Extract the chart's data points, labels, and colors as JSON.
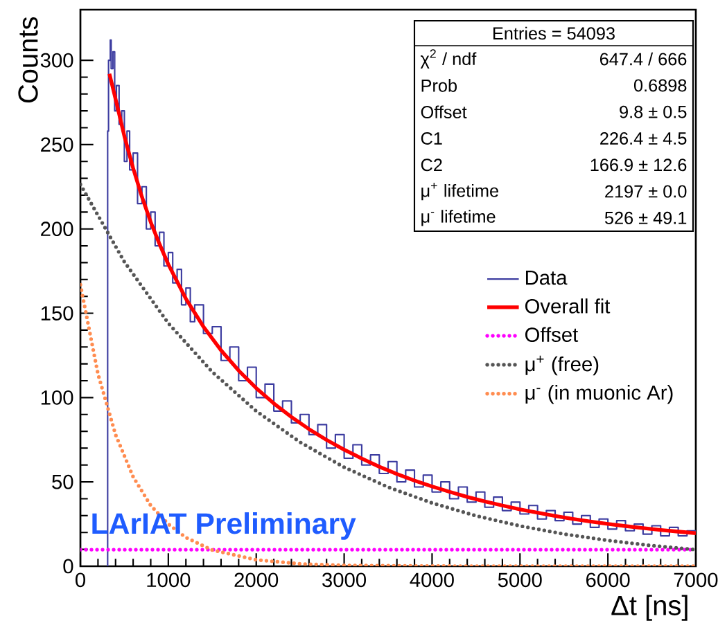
{
  "chart_data": {
    "type": "line",
    "ylabel": "Counts",
    "xlabel": "Δt [ns]",
    "xlim": [
      0,
      7000
    ],
    "ylim": [
      0,
      330
    ],
    "xticks": [
      0,
      1000,
      2000,
      3000,
      4000,
      5000,
      6000,
      7000
    ],
    "yticks": [
      0,
      50,
      100,
      150,
      200,
      250,
      300
    ],
    "legend": "right",
    "marker": "none",
    "grid": false,
    "series": [
      {
        "name": "Data",
        "type": "step",
        "color": "#3c3ca0",
        "line_style": "solid",
        "x": [
          300,
          310,
          320,
          340,
          350,
          370,
          390,
          410,
          440,
          470,
          500,
          530,
          560,
          600,
          650,
          700,
          750,
          800,
          850,
          900,
          950,
          1000,
          1050,
          1100,
          1150,
          1200,
          1250,
          1300,
          1400,
          1500,
          1600,
          1700,
          1800,
          1900,
          2000,
          2100,
          2200,
          2300,
          2400,
          2500,
          2600,
          2700,
          2800,
          2900,
          3000,
          3100,
          3200,
          3300,
          3400,
          3500,
          3600,
          3700,
          3800,
          3900,
          4000,
          4100,
          4200,
          4300,
          4400,
          4500,
          4600,
          4700,
          4800,
          4900,
          5000,
          5100,
          5200,
          5300,
          5400,
          5500,
          5600,
          5700,
          5800,
          5900,
          6000,
          6100,
          6200,
          6300,
          6400,
          6500,
          6600,
          6700,
          6800,
          6900,
          7000
        ],
        "values": [
          0,
          258,
          300,
          312,
          295,
          305,
          270,
          285,
          262,
          270,
          240,
          258,
          235,
          245,
          215,
          225,
          200,
          210,
          190,
          198,
          178,
          186,
          168,
          176,
          155,
          165,
          145,
          155,
          138,
          142,
          122,
          130,
          110,
          118,
          100,
          108,
          92,
          98,
          85,
          90,
          78,
          84,
          70,
          78,
          64,
          72,
          60,
          66,
          55,
          62,
          50,
          57,
          47,
          54,
          44,
          50,
          40,
          47,
          38,
          44,
          35,
          41,
          33,
          38,
          31,
          36,
          28,
          33,
          27,
          32,
          25,
          30,
          23,
          28,
          22,
          27,
          21,
          25,
          19,
          24,
          18,
          23,
          18,
          21,
          20
        ]
      },
      {
        "name": "Overall fit",
        "color": "#ff0000",
        "line_style": "solid",
        "x": [
          330,
          400,
          500,
          600,
          700,
          800,
          900,
          1000,
          1200,
          1400,
          1600,
          1800,
          2000,
          2200,
          2400,
          2600,
          2800,
          3000,
          3200,
          3400,
          3600,
          3800,
          4000,
          4200,
          4400,
          4600,
          4800,
          5000,
          5200,
          5400,
          5600,
          5800,
          6000,
          6200,
          6400,
          6600,
          6800,
          7000
        ],
        "values": [
          292,
          277,
          255,
          236,
          219,
          204,
          191,
          179,
          158.6,
          142,
          128,
          116,
          105.6,
          96.5,
          88.5,
          81.3,
          74.9,
          69.1,
          63.9,
          59,
          54.7,
          50.8,
          47.3,
          44.1,
          41.1,
          38.4,
          36,
          33.7,
          31.7,
          29.8,
          28.1,
          26.5,
          25.1,
          23.8,
          22.6,
          21.5,
          20.5,
          19.6
        ]
      },
      {
        "name": "Offset",
        "color": "#ff00ff",
        "line_style": "dotted",
        "x": [
          0,
          7000
        ],
        "values": [
          9.8,
          9.8
        ]
      },
      {
        "name": "μ$^{+}$ (free)",
        "color": "#555555",
        "line_style": "dotted",
        "x": [
          0,
          500,
          1000,
          1500,
          2000,
          2500,
          3000,
          3500,
          4000,
          4500,
          5000,
          5500,
          6000,
          6500,
          7000
        ],
        "values": [
          226.4,
          180.5,
          144.1,
          115.2,
          92,
          73.5,
          58.7,
          46.9,
          37.5,
          29.9,
          23.9,
          19.1,
          15.3,
          12.2,
          9.8
        ]
      },
      {
        "name": "μ$^{-}$ (in muonic Ar)",
        "color": "#ff8c50",
        "line_style": "dotted",
        "x": [
          0,
          200,
          400,
          600,
          800,
          1000,
          1200,
          1500,
          2000,
          2500,
          3000,
          4000,
          5000,
          7000
        ],
        "values": [
          166.9,
          114,
          78,
          53,
          36,
          25,
          17,
          9.6,
          3.8,
          1.4,
          0.5,
          0.1,
          0,
          0
        ]
      }
    ],
    "annotations": [
      "Entries = 54093",
      "χ$^{2}$ / ndf",
      "647.4 / 666",
      "Prob",
      "0.6898",
      "Offset",
      "9.8 ± 0.5",
      "C1",
      "226.4 ± 4.5",
      "C2",
      "166.9 ± 12.6",
      "μ$^{+}$ lifetime",
      "2197 ± 0.0",
      "μ$^{-}$ lifetime",
      "526 ± 49.1",
      "LArIAT Preliminary"
    ]
  }
}
